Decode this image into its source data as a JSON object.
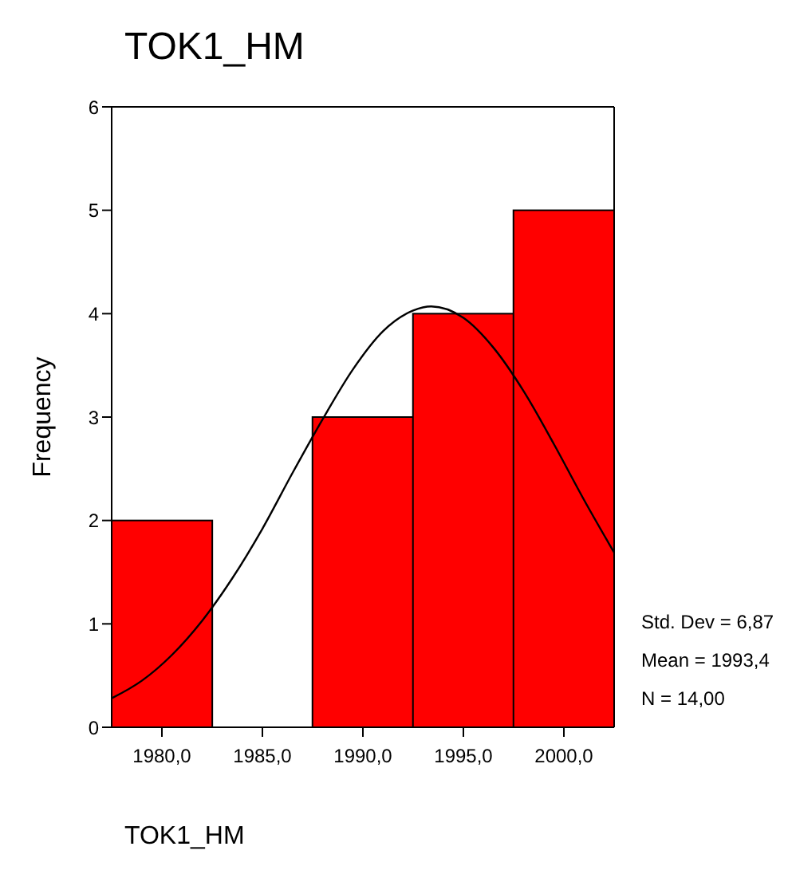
{
  "chart_data": {
    "type": "histogram",
    "title": "TOK1_HM",
    "xlabel": "TOK1_HM",
    "ylabel": "Frequency",
    "bins": [
      1977.5,
      1982.5,
      1987.5,
      1992.5,
      1997.5,
      2002.5
    ],
    "values": [
      2,
      0,
      3,
      4,
      5
    ],
    "color": "#ff0000",
    "series": [
      {
        "type": "line",
        "color": "#000000",
        "x": [
          1977.5,
          1979,
          1980.5,
          1982,
          1983.5,
          1985,
          1986.5,
          1988,
          1989.5,
          1991,
          1992.5,
          1993.4,
          1995,
          1996.5,
          1998,
          1999.5,
          2001,
          2002.5
        ],
        "values": [
          0.28,
          0.45,
          0.7,
          1.03,
          1.44,
          1.92,
          2.46,
          2.98,
          3.46,
          3.83,
          4.03,
          4.07,
          3.96,
          3.67,
          3.25,
          2.74,
          2.2,
          1.69
        ]
      }
    ],
    "xlim": [
      1977.5,
      2002.5
    ],
    "xticks": [
      {
        "value": 1980,
        "label": "1980,0"
      },
      {
        "value": 1985,
        "label": "1985,0"
      },
      {
        "value": 1990,
        "label": "1990,0"
      },
      {
        "value": 1995,
        "label": "1995,0"
      },
      {
        "value": 2000,
        "label": "2000,0"
      }
    ],
    "ylim": [
      0,
      6
    ],
    "yticks": [
      0,
      1,
      2,
      3,
      4,
      5,
      6
    ],
    "grid": false,
    "annotations": [
      "Std. Dev = 6,87",
      "Mean = 1993,4",
      "N = 14,00"
    ]
  }
}
